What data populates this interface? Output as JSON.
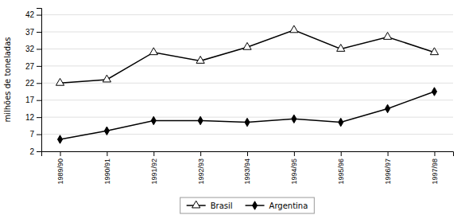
{
  "chart_data": {
    "type": "line",
    "categories": [
      "1989/90",
      "1990/91",
      "1991/92",
      "1992/93",
      "1993/94",
      "1994/95",
      "1995/96",
      "1996/97",
      "1997/98"
    ],
    "series": [
      {
        "name": "Brasil",
        "color": "#000000",
        "marker": "triangle-open",
        "values": [
          22,
          23,
          31,
          28.5,
          32.5,
          37.5,
          32,
          35.5,
          31
        ]
      },
      {
        "name": "Argentina",
        "color": "#000000",
        "marker": "diamond",
        "values": [
          5.5,
          8,
          11,
          11,
          10.5,
          11.5,
          10.5,
          14.5,
          19.5
        ]
      }
    ],
    "y_label": "milhões de toneladas",
    "ylim": [
      2,
      44
    ],
    "yticks": [
      2,
      7,
      12,
      17,
      22,
      27,
      32,
      37,
      42
    ],
    "grid": true,
    "legend": "bottom"
  }
}
